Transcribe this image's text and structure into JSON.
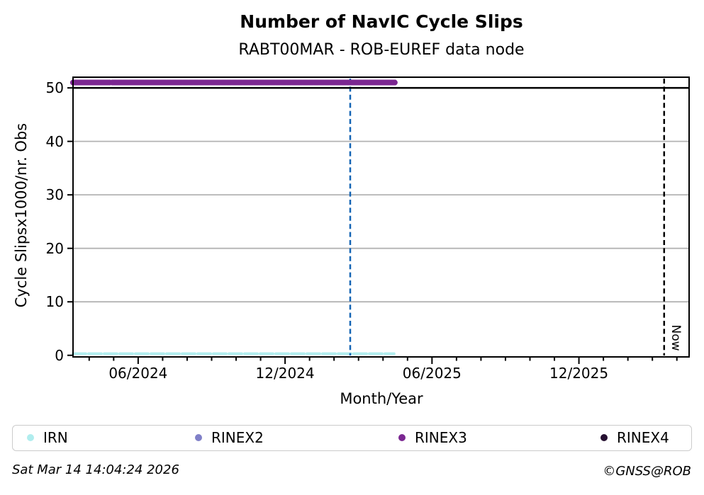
{
  "title": "Number of NavIC Cycle Slips",
  "subtitle": "RABT00MAR - ROB-EUREF data node",
  "footer": {
    "timestamp": "Sat Mar 14 14:04:24 2026",
    "copyright": "©GNSS@ROB"
  },
  "chart_data": {
    "type": "scatter",
    "title": "Number of NavIC Cycle Slips",
    "subtitle": "RABT00MAR - ROB-EUREF data node",
    "xlabel": "Month/Year",
    "ylabel": "Cycle Slipsx1000/nr. Obs",
    "x_unit": "months_since_2024_01",
    "xlim": [
      2.34,
      27.5
    ],
    "ylim": [
      -0.3,
      52.0
    ],
    "y_ticks": [
      0,
      10,
      20,
      30,
      40,
      50
    ],
    "grid_y": [
      10,
      20,
      30,
      40
    ],
    "x_major_ticks": [
      {
        "m": 5,
        "label": "06/2024"
      },
      {
        "m": 11,
        "label": "12/2024"
      },
      {
        "m": 17,
        "label": "06/2025"
      },
      {
        "m": 23,
        "label": "12/2025"
      }
    ],
    "x_minor_tick_step": 1,
    "threshold_line": {
      "y": 50,
      "color": "#000000"
    },
    "series": [
      {
        "name": "IRN",
        "color": "#b0edee",
        "y": 0.3,
        "segments": [
          [
            2.34,
            15.45
          ]
        ],
        "style": "dotted"
      },
      {
        "name": "RINEX2",
        "color": "#8080c8",
        "y": null,
        "segments": [],
        "style": "dotted"
      },
      {
        "name": "RINEX3",
        "color": "#7b2791",
        "y": 51,
        "segments": [
          [
            2.34,
            3.87
          ],
          [
            3.95,
            15.51
          ]
        ],
        "style": "dotted"
      },
      {
        "name": "RINEX4",
        "color": "#261031",
        "y": null,
        "segments": [],
        "style": "dotted"
      }
    ],
    "vlines": [
      {
        "m": 13.66,
        "color": "#1464b4",
        "style": "dashed",
        "label": ""
      },
      {
        "m": 26.48,
        "color": "#000000",
        "style": "dashed",
        "label": "Now"
      }
    ],
    "legend": {
      "position": "bottom",
      "items": [
        {
          "label": "IRN",
          "color": "#b0edee"
        },
        {
          "label": "RINEX2",
          "color": "#8080c8"
        },
        {
          "label": "RINEX3",
          "color": "#7b2791"
        },
        {
          "label": "RINEX4",
          "color": "#261031"
        }
      ]
    }
  }
}
